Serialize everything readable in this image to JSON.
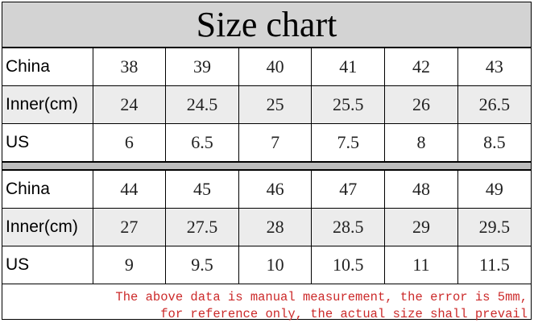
{
  "title": "Size chart",
  "block1": [
    {
      "label": "China",
      "values": [
        "38",
        "39",
        "40",
        "41",
        "42",
        "43"
      ]
    },
    {
      "label": "Inner(cm)",
      "values": [
        "24",
        "24.5",
        "25",
        "25.5",
        "26",
        "26.5"
      ]
    },
    {
      "label": "US",
      "values": [
        "6",
        "6.5",
        "7",
        "7.5",
        "8",
        "8.5"
      ]
    }
  ],
  "block2": [
    {
      "label": "China",
      "values": [
        "44",
        "45",
        "46",
        "47",
        "48",
        "49"
      ]
    },
    {
      "label": "Inner(cm)",
      "values": [
        "27",
        "27.5",
        "28",
        "28.5",
        "29",
        "29.5"
      ]
    },
    {
      "label": "US",
      "values": [
        "9",
        "9.5",
        "10",
        "10.5",
        "11",
        "11.5"
      ]
    }
  ],
  "note": {
    "line1": "The above data is manual measurement, the error is 5mm,",
    "line2": "for reference only, the actual size shall prevail"
  },
  "colors": {
    "note_text": "#cc2a2a",
    "title_bg": "#d3d3d3",
    "separator_bg": "#bdbdbd",
    "shaded_row_bg": "#ececec"
  }
}
